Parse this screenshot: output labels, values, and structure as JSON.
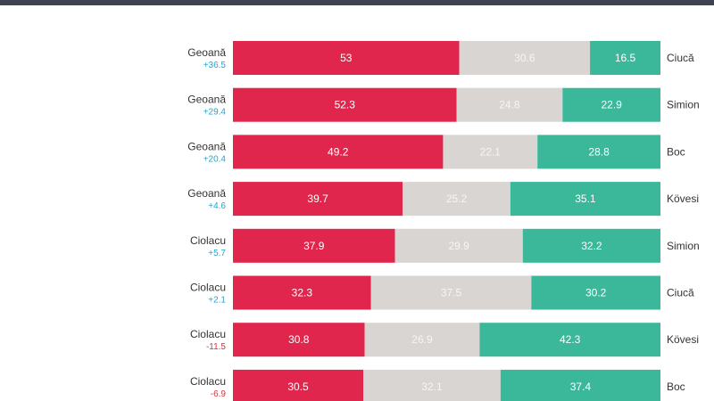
{
  "colors": {
    "left": "#e1264d",
    "undecided": "#d8d5d2",
    "right": "#3bb89a",
    "positive_margin": "#2aa3c9",
    "negative_margin": "#d6343b",
    "label_dark": "#ffffff",
    "label_light": "#f6f6f6"
  },
  "chart_data": {
    "type": "bar",
    "orientation": "horizontal-stacked",
    "title": "",
    "xlabel": "",
    "ylabel": "",
    "xlim": [
      0,
      100
    ],
    "rows": [
      {
        "left": "Geoană",
        "margin": "+36.5",
        "right": "Ciucă",
        "values": [
          53,
          30.6,
          16.5
        ]
      },
      {
        "left": "Geoană",
        "margin": "+29.4",
        "right": "Simion",
        "values": [
          52.3,
          24.8,
          22.9
        ]
      },
      {
        "left": "Geoană",
        "margin": "+20.4",
        "right": "Boc",
        "values": [
          49.2,
          22.1,
          28.8
        ]
      },
      {
        "left": "Geoană",
        "margin": "+4.6",
        "right": "Kövesi",
        "values": [
          39.7,
          25.2,
          35.1
        ]
      },
      {
        "left": "Ciolacu",
        "margin": "+5.7",
        "right": "Simion",
        "values": [
          37.9,
          29.9,
          32.2
        ]
      },
      {
        "left": "Ciolacu",
        "margin": "+2.1",
        "right": "Ciucă",
        "values": [
          32.3,
          37.5,
          30.2
        ]
      },
      {
        "left": "Ciolacu",
        "margin": "-11.5",
        "right": "Kövesi",
        "values": [
          30.8,
          26.9,
          42.3
        ]
      },
      {
        "left": "Ciolacu",
        "margin": "-6.9",
        "right": "Boc",
        "values": [
          30.5,
          32.1,
          37.4
        ]
      }
    ]
  }
}
